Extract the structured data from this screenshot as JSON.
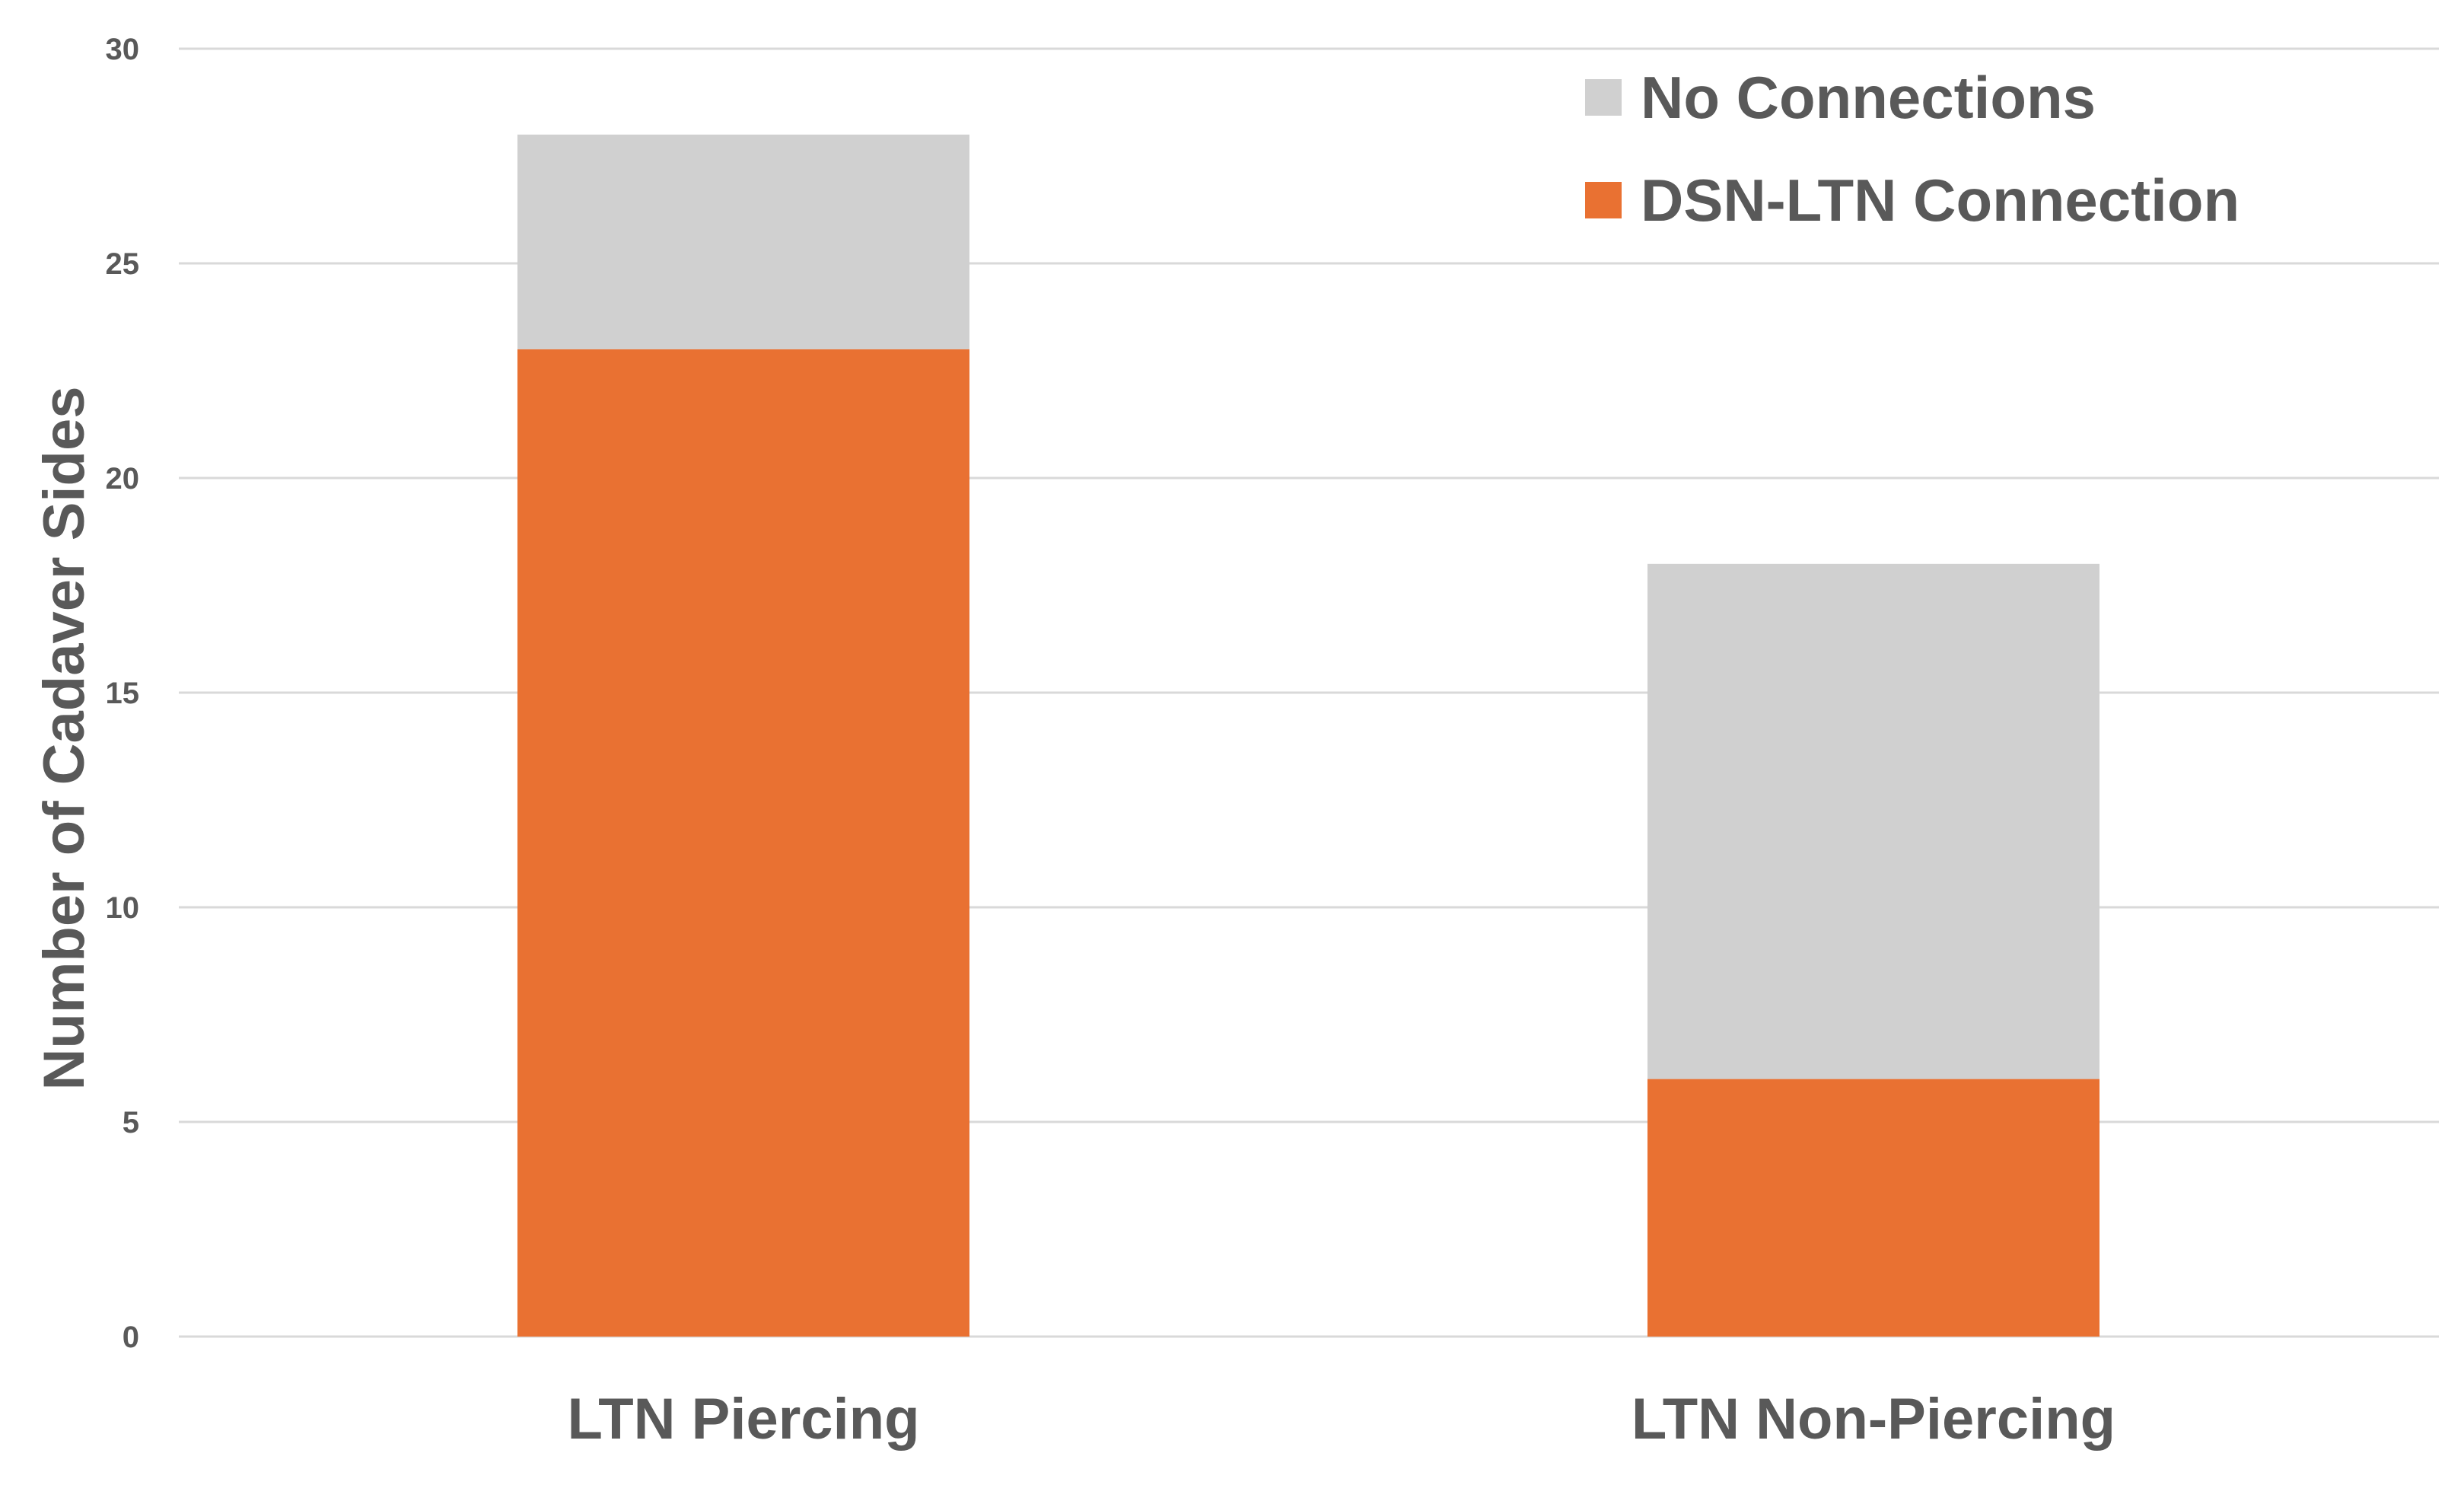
{
  "chart_data": {
    "type": "bar",
    "stacked": true,
    "categories": [
      "LTN Piercing",
      "LTN Non-Piercing"
    ],
    "series": [
      {
        "name": "DSN-LTN Connection",
        "values": [
          23,
          6
        ],
        "color": "#E97132"
      },
      {
        "name": "No Connections",
        "values": [
          5,
          12
        ],
        "color": "#D0D0D0"
      }
    ],
    "title": "",
    "xlabel": "",
    "ylabel": "Number of Cadaver Sides",
    "ylim": [
      0,
      30
    ],
    "yticks": [
      0,
      5,
      10,
      15,
      20,
      25,
      30
    ],
    "grid": true,
    "legend": {
      "position": "top-right",
      "order": [
        "No Connections",
        "DSN-LTN Connection"
      ]
    },
    "colors": {
      "gridline": "#D9D9D9",
      "text": "#595959"
    }
  }
}
